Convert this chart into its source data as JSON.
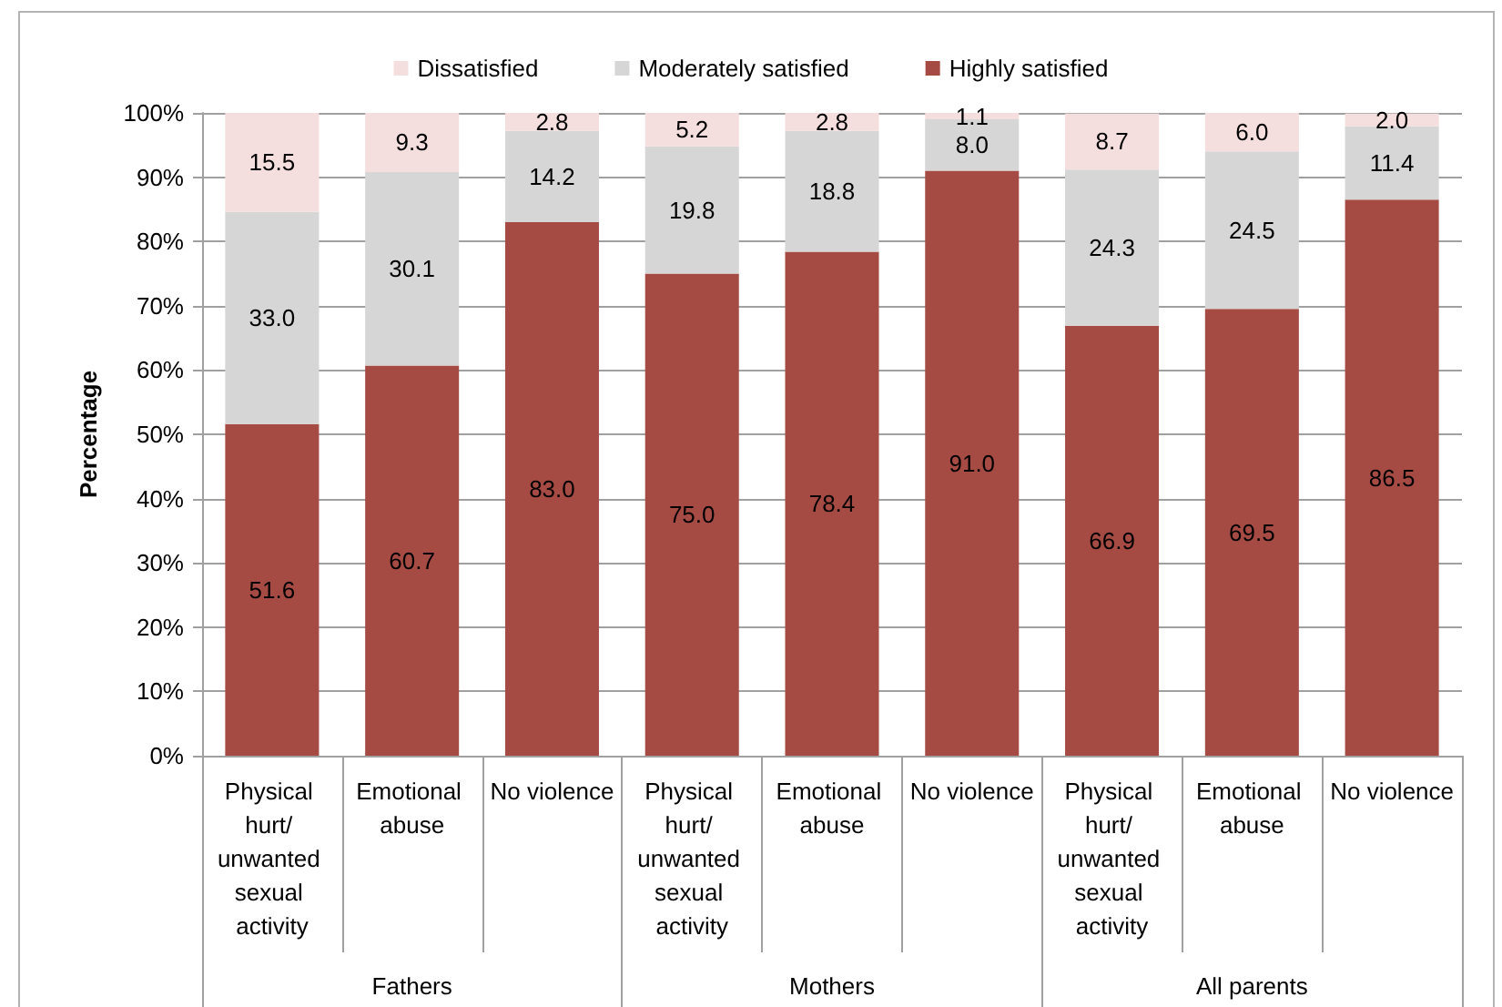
{
  "chart_data": {
    "type": "bar",
    "stacked": true,
    "categories": [
      "Physical hurt/ unwanted sexual activity",
      "Emotional abuse",
      "No violence",
      "Physical hurt/ unwanted sexual activity",
      "Emotional abuse",
      "No violence",
      "Physical hurt/ unwanted sexual activity",
      "Emotional abuse",
      "No violence"
    ],
    "ylabel": "Percentage",
    "ylim": [
      0,
      100
    ],
    "yticks": [
      {
        "value": 0,
        "label": "0%"
      },
      {
        "value": 10,
        "label": "10%"
      },
      {
        "value": 20,
        "label": "20%"
      },
      {
        "value": 30,
        "label": "30%"
      },
      {
        "value": 40,
        "label": "40%"
      },
      {
        "value": 50,
        "label": "50%"
      },
      {
        "value": 60,
        "label": "60%"
      },
      {
        "value": 70,
        "label": "70%"
      },
      {
        "value": 80,
        "label": "80%"
      },
      {
        "value": 90,
        "label": "90%"
      },
      {
        "value": 100,
        "label": "100%"
      }
    ],
    "grid": "y",
    "legend": "top",
    "annotations": [
      "Fathers",
      "Mothers",
      "All parents"
    ],
    "series": [
      {
        "name": "Highly satisfied",
        "color": "#a64b44",
        "values": [
          51.6,
          60.7,
          83.0,
          75.0,
          78.4,
          91.0,
          66.9,
          69.5,
          86.5
        ],
        "value_labels": [
          "51.6",
          "60.7",
          "83.0",
          "75.0",
          "78.4",
          "91.0",
          "66.9",
          "69.5",
          "86.5"
        ]
      },
      {
        "name": "Moderately satisfied",
        "color": "#d6d6d6",
        "values": [
          33.0,
          30.1,
          14.2,
          19.8,
          18.8,
          8.0,
          24.3,
          24.5,
          11.4
        ],
        "value_labels": [
          "33.0",
          "30.1",
          "14.2",
          "19.8",
          "18.8",
          "8.0",
          "24.3",
          "24.5",
          "11.4"
        ]
      },
      {
        "name": "Dissatisfied",
        "color": "#f5dede",
        "values": [
          15.5,
          9.3,
          2.8,
          5.2,
          2.8,
          1.1,
          8.7,
          6.0,
          2.0
        ],
        "value_labels": [
          "15.5",
          "9.3",
          "2.8",
          "5.2",
          "2.8",
          "1.1",
          "8.7",
          "6.0",
          "2.0"
        ]
      }
    ]
  }
}
